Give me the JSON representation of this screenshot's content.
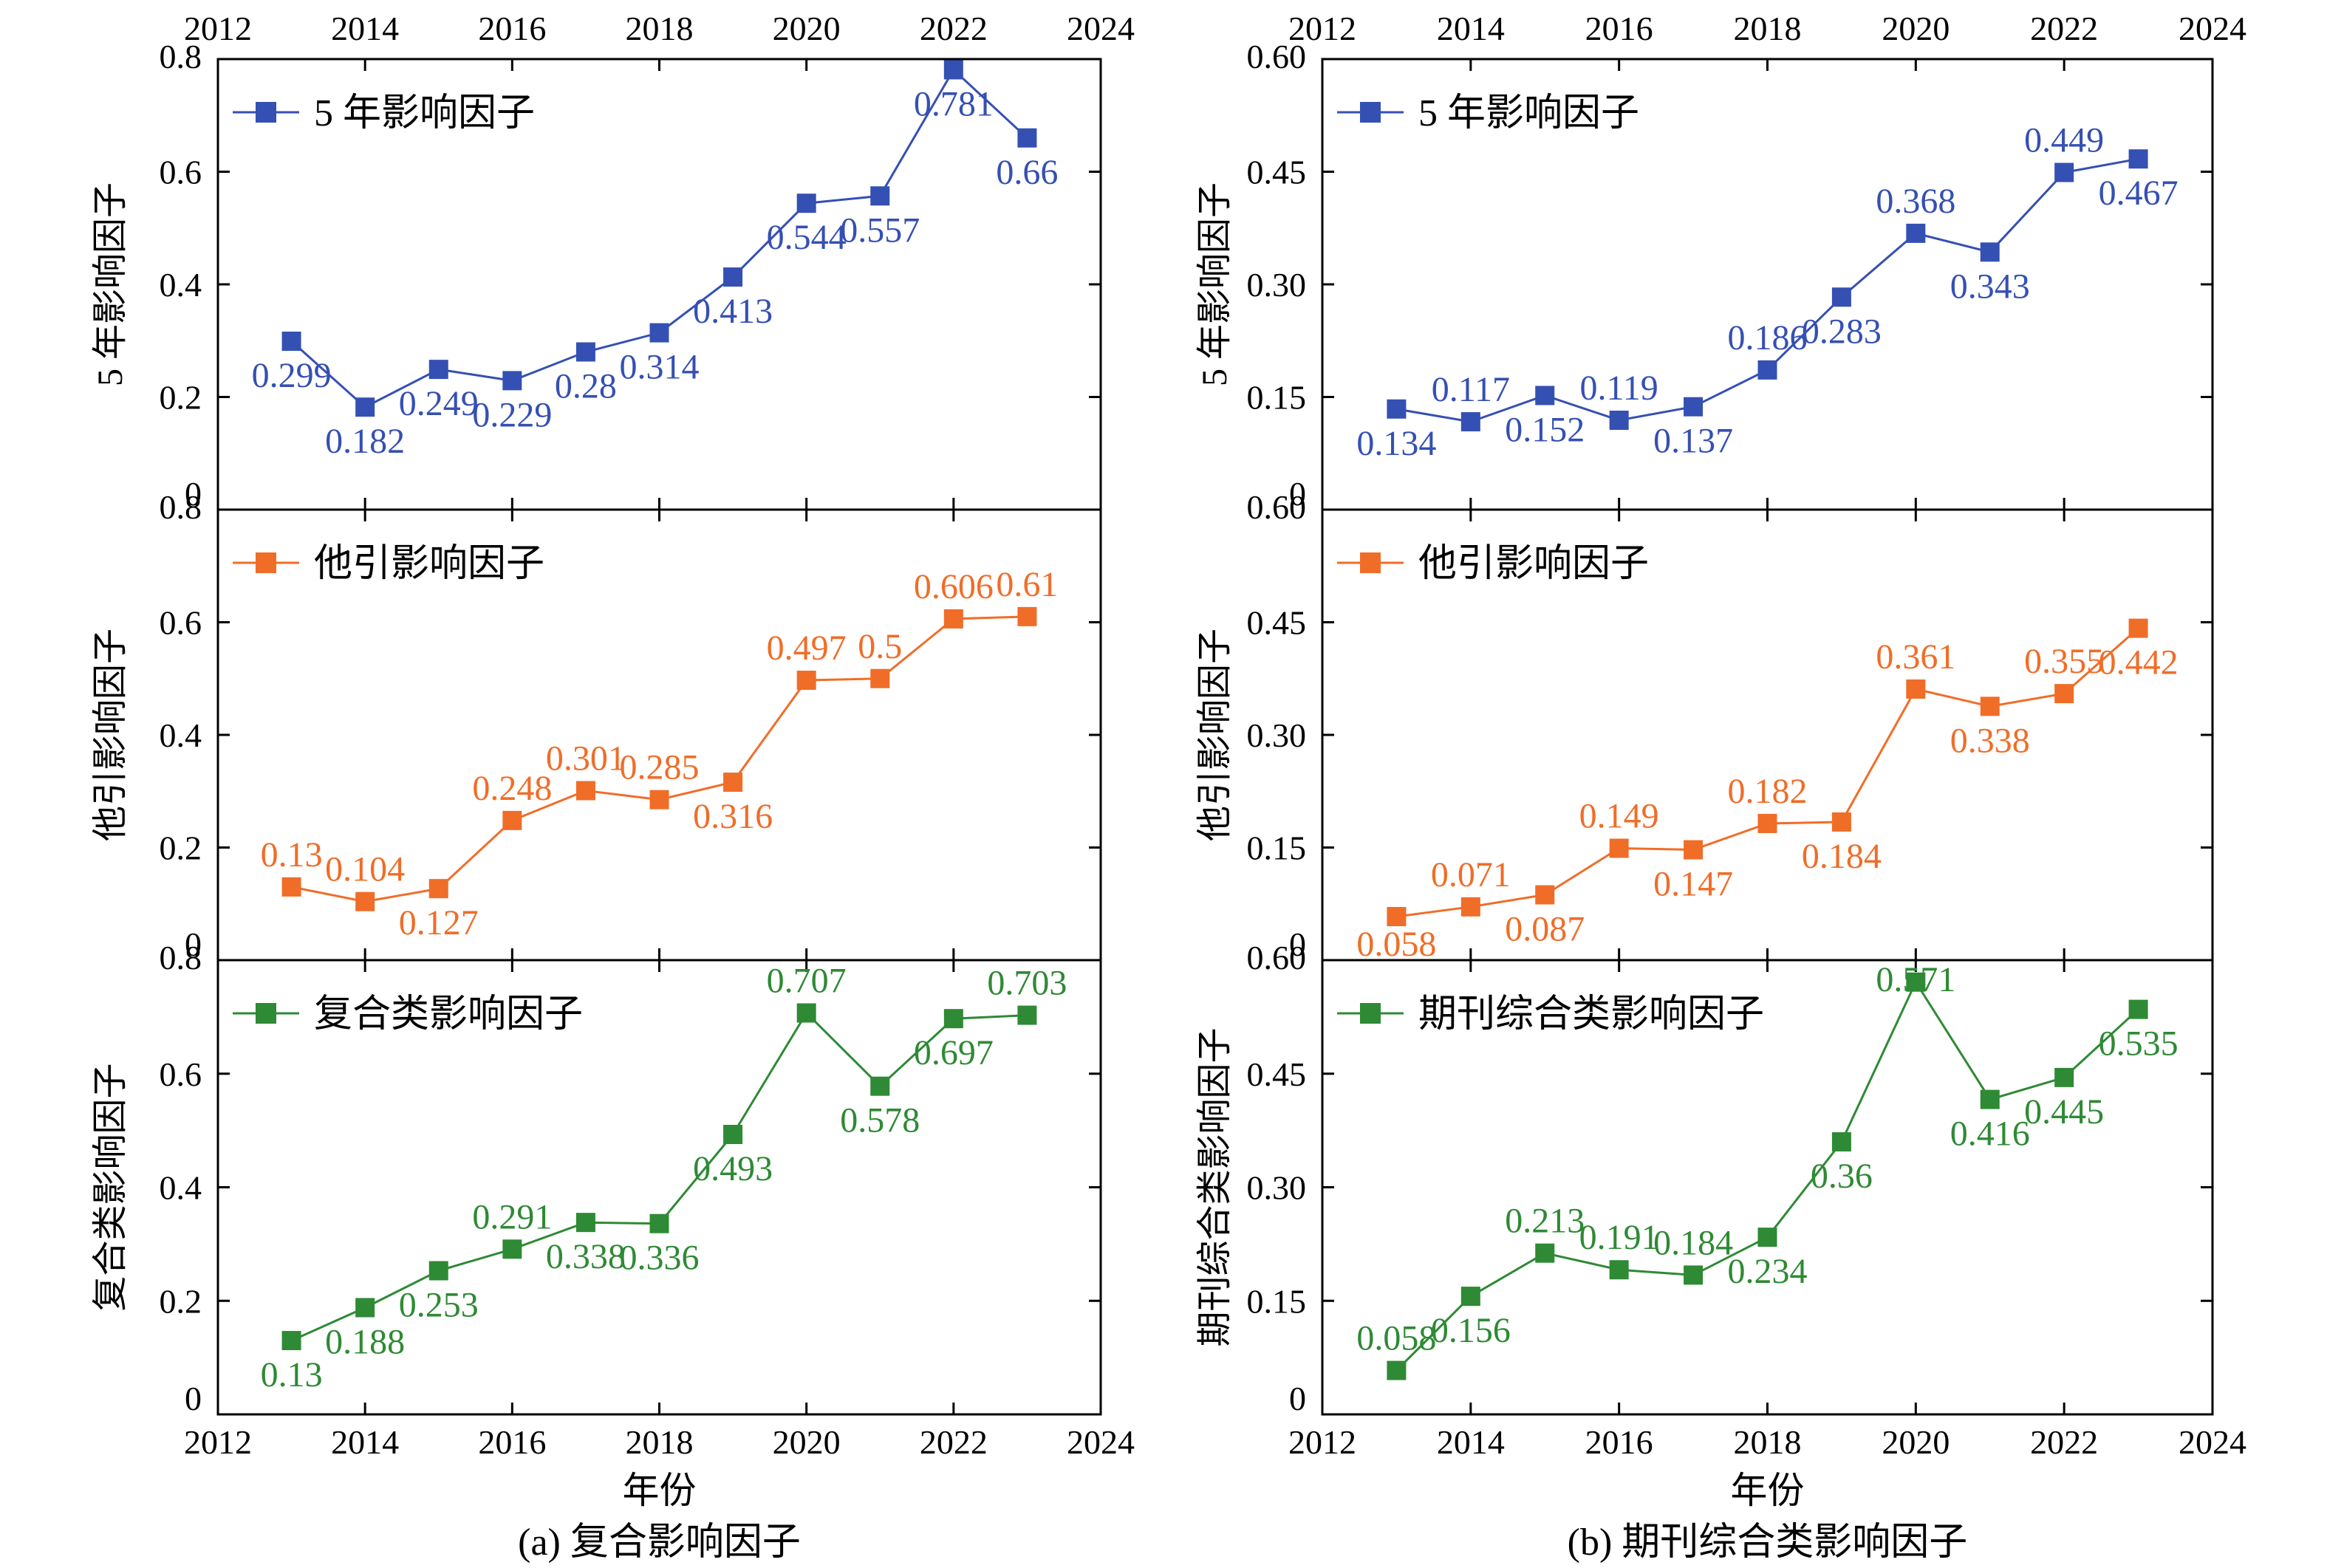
{
  "colors": {
    "blue": "#3550b3",
    "orange": "#f06d28",
    "green": "#2e8a34"
  },
  "chart_data": [
    {
      "type": "line",
      "panel": "a",
      "caption": "(a) 复合影响因子",
      "xlabel": "年份",
      "x": [
        2013,
        2014,
        2015,
        2016,
        2017,
        2018,
        2019,
        2020,
        2021,
        2022,
        2023
      ],
      "xlim": [
        2012,
        2024
      ],
      "xticks": [
        "2012",
        "2014",
        "2016",
        "2018",
        "2020",
        "2022",
        "2024"
      ],
      "subplots": [
        {
          "ylabel": "5 年影响因子",
          "legend": "5 年影响因子",
          "color": "blue",
          "ylim": [
            0,
            0.8
          ],
          "yticks": [
            "0",
            "0.2",
            "0.4",
            "0.6",
            "0.8"
          ],
          "y": [
            0.299,
            0.182,
            0.249,
            0.229,
            0.28,
            0.314,
            0.413,
            0.544,
            0.557,
            0.781,
            0.66
          ],
          "labels": [
            "0.299",
            "0.182",
            "0.249",
            "0.229",
            "0.28",
            "0.314",
            "0.413",
            "0.544",
            "0.557",
            "0.781",
            "0.66"
          ]
        },
        {
          "ylabel": "他引影响因子",
          "legend": "他引影响因子",
          "color": "orange",
          "ylim": [
            0,
            0.8
          ],
          "yticks": [
            "0",
            "0.2",
            "0.4",
            "0.6",
            "0.8"
          ],
          "y": [
            0.13,
            0.104,
            0.127,
            0.248,
            0.301,
            0.285,
            0.316,
            0.497,
            0.5,
            0.606,
            0.61
          ],
          "labels": [
            "0.13",
            "0.104",
            "0.127",
            "0.248",
            "0.301",
            "0.285",
            "0.316",
            "0.497",
            "0.5",
            "0.606",
            "0.61"
          ]
        },
        {
          "ylabel": "复合类影响因子",
          "legend": "复合类影响因子",
          "color": "green",
          "ylim": [
            0,
            0.8
          ],
          "yticks": [
            "0",
            "0.2",
            "0.4",
            "0.6",
            "0.8"
          ],
          "y": [
            0.13,
            0.188,
            0.253,
            0.291,
            0.338,
            0.336,
            0.493,
            0.707,
            0.578,
            0.697,
            0.703
          ],
          "labels": [
            "0.13",
            "0.188",
            "0.253",
            "0.291",
            "0.338",
            "0.336",
            "0.493",
            "0.707",
            "0.578",
            "0.697",
            "0.703"
          ]
        }
      ]
    },
    {
      "type": "line",
      "panel": "b",
      "caption": "(b) 期刊综合类影响因子",
      "xlabel": "年份",
      "x": [
        2013,
        2014,
        2015,
        2016,
        2017,
        2018,
        2019,
        2020,
        2021,
        2022,
        2023
      ],
      "xlim": [
        2012,
        2024
      ],
      "xticks": [
        "2012",
        "2014",
        "2016",
        "2018",
        "2020",
        "2022",
        "2024"
      ],
      "subplots": [
        {
          "ylabel": "5 年影响因子",
          "legend": "5 年影响因子",
          "color": "blue",
          "ylim": [
            0,
            0.6
          ],
          "yticks": [
            "0",
            "0.15",
            "0.30",
            "0.45",
            "0.60"
          ],
          "y": [
            0.134,
            0.117,
            0.152,
            0.119,
            0.137,
            0.186,
            0.283,
            0.368,
            0.343,
            0.449,
            0.467
          ],
          "labels": [
            "0.134",
            "0.117",
            "0.152",
            "0.119",
            "0.137",
            "0.186",
            "0.283",
            "0.368",
            "0.343",
            "0.449",
            "0.467"
          ]
        },
        {
          "ylabel": "他引影响因子",
          "legend": "他引影响因子",
          "color": "orange",
          "ylim": [
            0,
            0.6
          ],
          "yticks": [
            "0",
            "0.15",
            "0.30",
            "0.45",
            "0.60"
          ],
          "y": [
            0.058,
            0.071,
            0.087,
            0.149,
            0.147,
            0.182,
            0.184,
            0.361,
            0.338,
            0.355,
            0.442
          ],
          "labels": [
            "0.058",
            "0.071",
            "0.087",
            "0.149",
            "0.147",
            "0.182",
            "0.184",
            "0.361",
            "0.338",
            "0.355",
            "0.442"
          ]
        },
        {
          "ylabel": "期刊综合类影响因子",
          "legend": "期刊综合类影响因子",
          "color": "green",
          "ylim": [
            0,
            0.6
          ],
          "yticks": [
            "0",
            "0.15",
            "0.30",
            "0.45",
            "0.60"
          ],
          "y": [
            0.058,
            0.156,
            0.213,
            0.191,
            0.184,
            0.234,
            0.36,
            0.571,
            0.416,
            0.445,
            0.535
          ],
          "labels": [
            "0.058",
            "0.156",
            "0.213",
            "0.191",
            "0.184",
            "0.234",
            "0.36",
            "0.571",
            "0.416",
            "0.445",
            "0.535"
          ]
        }
      ]
    }
  ]
}
